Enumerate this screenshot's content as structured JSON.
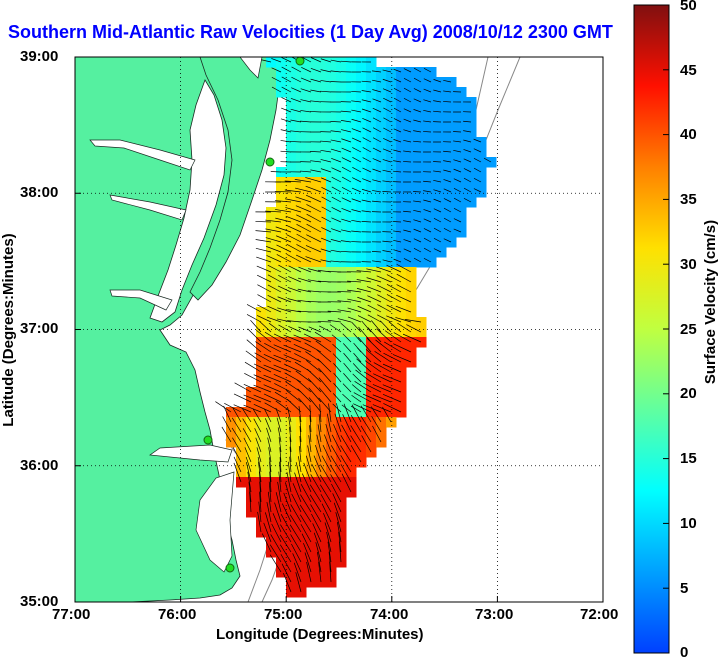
{
  "title": "Southern Mid-Atlantic Raw Velocities (1 Day Avg) 2008/10/12 2300 GMT",
  "axes": {
    "xlabel": "Longitude (Degrees:Minutes)",
    "ylabel": "Latitude (Degrees:Minutes)",
    "xticks": [
      "77:00",
      "76:00",
      "75:00",
      "74:00",
      "73:00",
      "72:00"
    ],
    "yticks": [
      "39:00",
      "38:00",
      "37:00",
      "36:00",
      "35:00"
    ],
    "lon_range": [
      -77,
      -72
    ],
    "lat_range": [
      35,
      39
    ],
    "grid": "dotted"
  },
  "colorbar": {
    "label": "Surface Velocity (cm/s)",
    "ticks": [
      "50",
      "45",
      "40",
      "35",
      "30",
      "25",
      "20",
      "15",
      "10",
      "5",
      "0"
    ],
    "range": [
      0,
      50
    ],
    "colormap": "jet"
  },
  "colors": {
    "land": "#55f0a0",
    "water": "#ffffff",
    "title": "#0000ff",
    "station": "#22dd22"
  }
}
